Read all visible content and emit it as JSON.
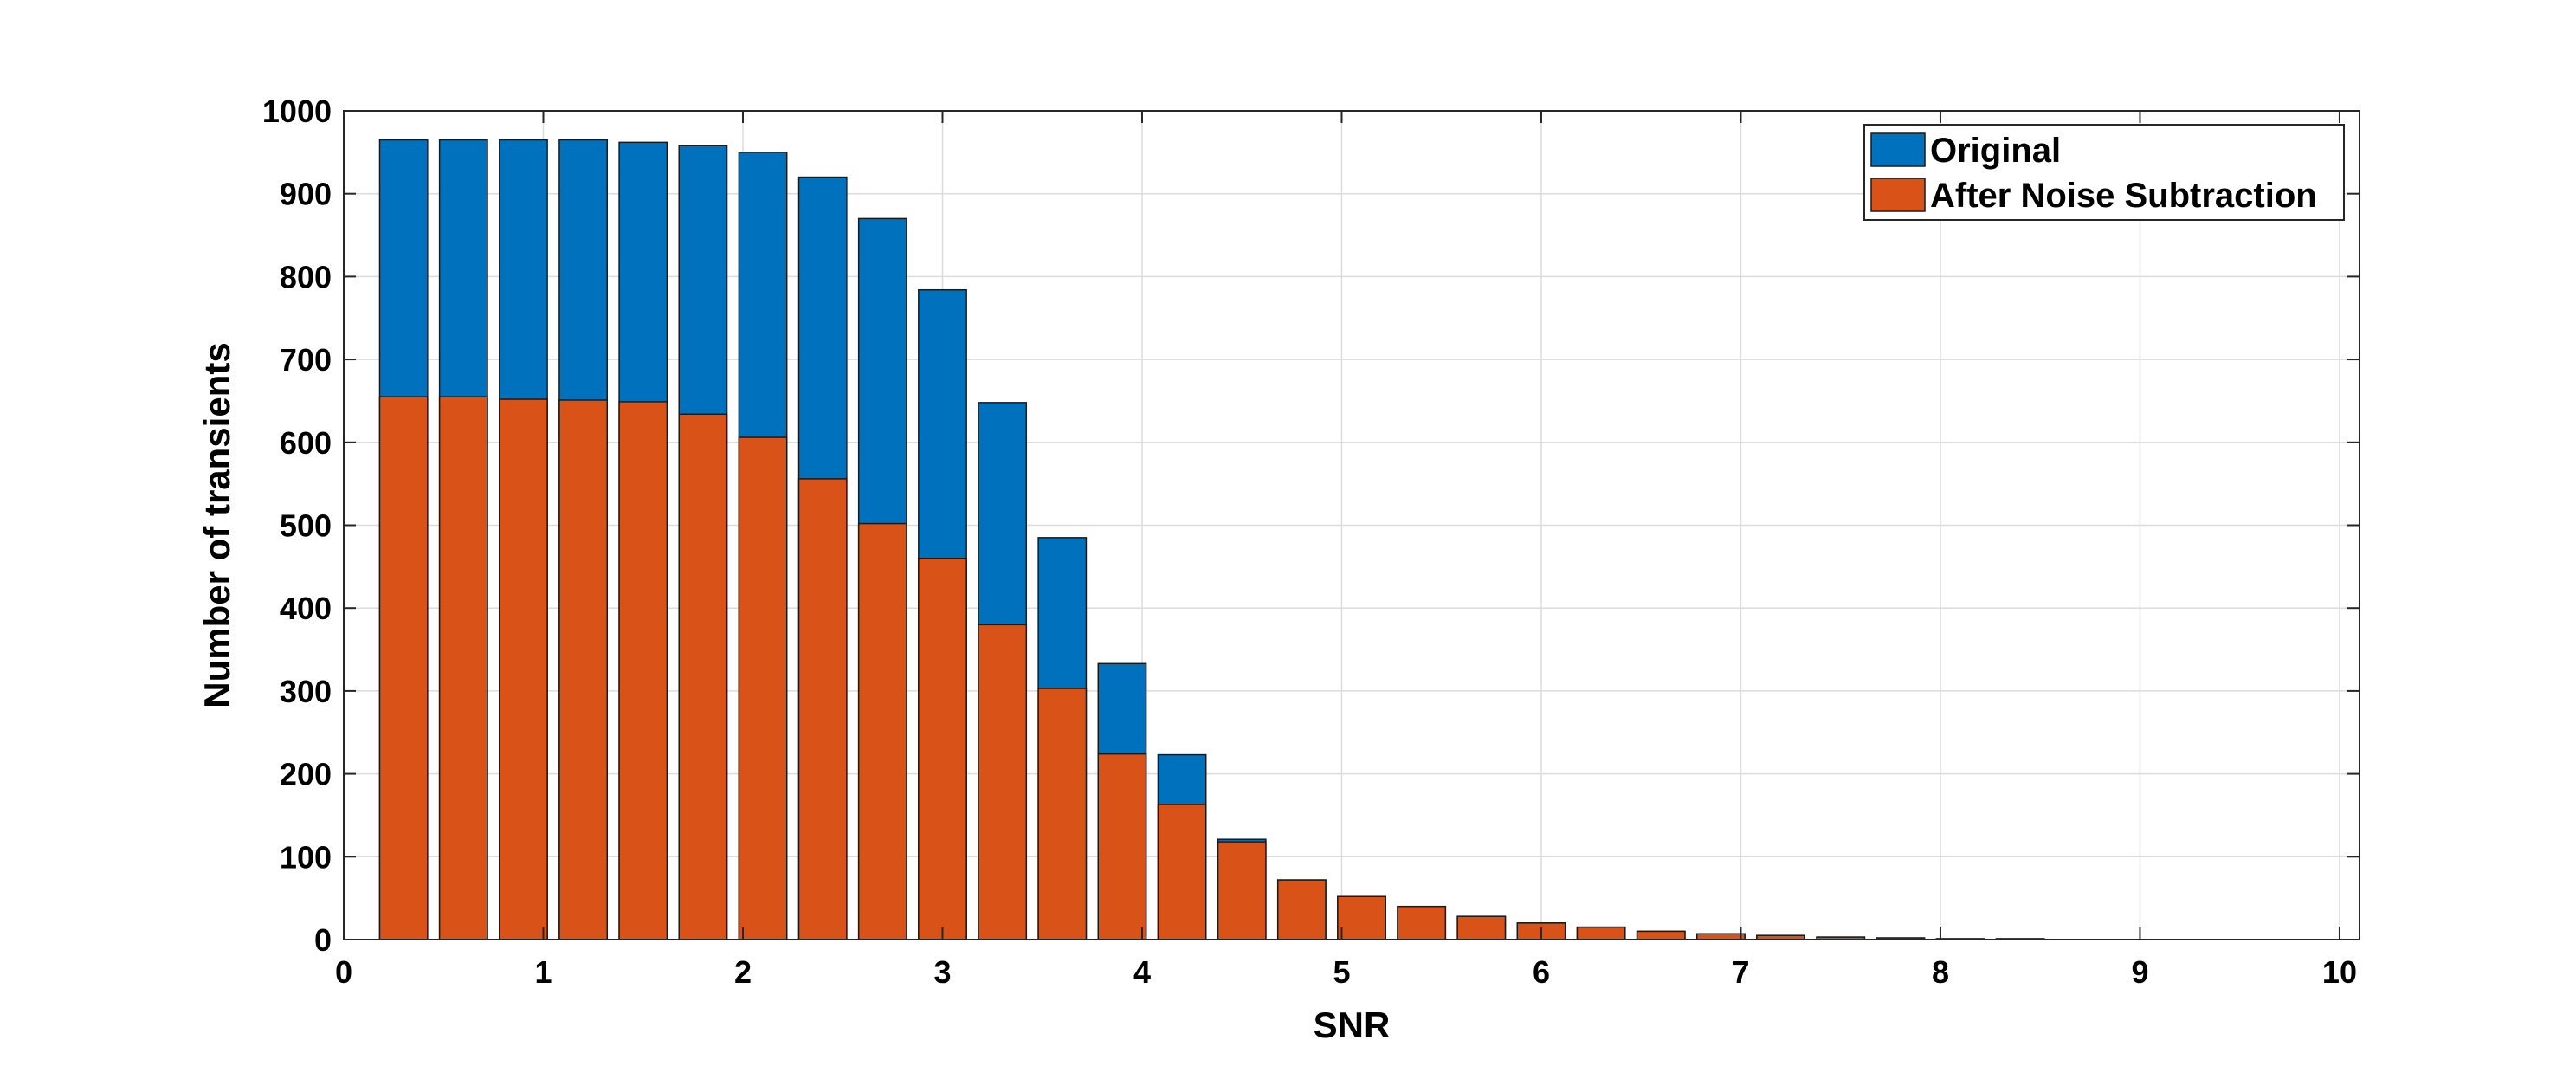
{
  "chart_data": {
    "type": "bar",
    "title": "",
    "xlabel": "SNR",
    "ylabel": "Number of transients",
    "xlim": [
      0,
      10.1
    ],
    "ylim": [
      0,
      1000
    ],
    "xticks": [
      0,
      1,
      2,
      3,
      4,
      5,
      6,
      7,
      8,
      9,
      10
    ],
    "yticks": [
      0,
      100,
      200,
      300,
      400,
      500,
      600,
      700,
      800,
      900,
      1000
    ],
    "grid": true,
    "legend_position": "top-right",
    "bar_width": 0.24,
    "x": [
      0.3,
      0.6,
      0.9,
      1.2,
      1.5,
      1.8,
      2.1,
      2.4,
      2.7,
      3.0,
      3.3,
      3.6,
      3.9,
      4.2,
      4.5,
      4.8,
      5.1,
      5.4,
      5.7,
      6.0,
      6.3,
      6.6,
      6.9,
      7.2,
      7.5,
      7.8,
      8.1,
      8.4,
      8.7,
      9.0,
      9.3,
      9.6,
      9.9
    ],
    "series": [
      {
        "name": "Original",
        "color": "#0072BD",
        "values": [
          965,
          965,
          965,
          965,
          962,
          958,
          950,
          920,
          870,
          784,
          648,
          485,
          333,
          223,
          121,
          72,
          52,
          40,
          28,
          20,
          15,
          10,
          7,
          5,
          3,
          2,
          1,
          1,
          0,
          0,
          0,
          0,
          0
        ]
      },
      {
        "name": "After Noise Subtraction",
        "color": "#D95319",
        "values": [
          655,
          655,
          652,
          651,
          649,
          634,
          606,
          556,
          502,
          460,
          380,
          303,
          224,
          163,
          118,
          72,
          52,
          40,
          28,
          20,
          15,
          10,
          7,
          5,
          3,
          2,
          1,
          1,
          0,
          0,
          0,
          0,
          0
        ]
      }
    ]
  }
}
